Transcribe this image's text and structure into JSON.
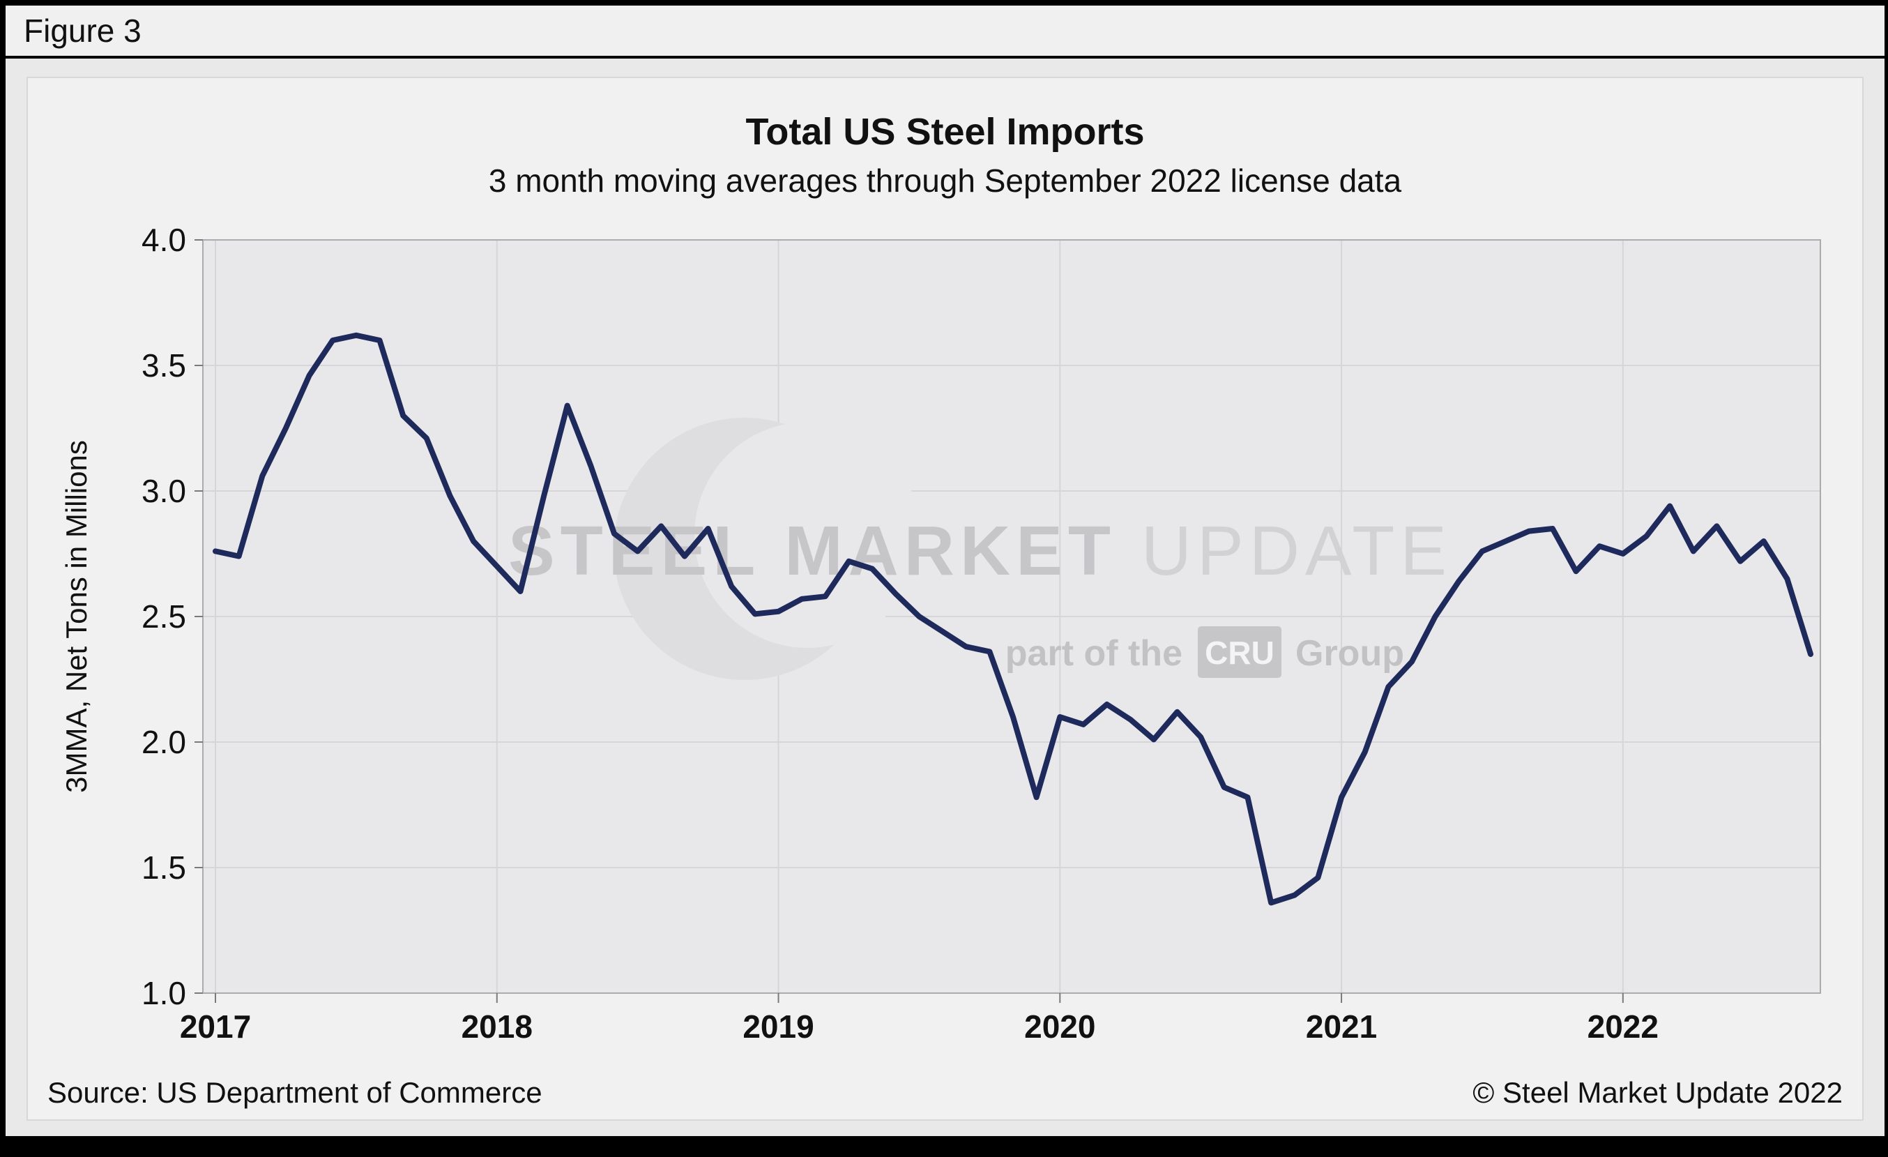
{
  "figure_label": "Figure 3",
  "chart": {
    "title": "Total US Steel Imports",
    "subtitle": "3 month moving averages through September 2022 license data",
    "ylabel": "3MMA, Net Tons in Millions",
    "watermark": {
      "line1_bold": "STEEL MARKET ",
      "line1_light": "UPDATE",
      "line2_pre": "part of the",
      "line2_box": "CRU",
      "line2_post": "Group"
    },
    "colors": {
      "line": "#1f2a5c",
      "plot_bg": "#e8e8ea",
      "gridline": "#d6d6d8",
      "plot_border": "#ababad",
      "watermark_text": "#c6c6c9",
      "watermark_light": "#d2d2d4"
    }
  },
  "footer": {
    "source": "Source: US Department of Commerce",
    "copyright": "© Steel Market Update 2022"
  },
  "chart_data": {
    "type": "line",
    "title": "Total US Steel Imports",
    "subtitle": "3 month moving averages through September 2022 license data",
    "xlabel": "",
    "ylabel": "3MMA, Net Tons in Millions",
    "ylim": [
      1.0,
      4.0
    ],
    "yticks": [
      1.0,
      1.5,
      2.0,
      2.5,
      3.0,
      3.5,
      4.0
    ],
    "ytick_labels": [
      "1.0",
      "1.5",
      "2.0",
      "2.5",
      "3.0",
      "3.5",
      "4.0"
    ],
    "x_tick_years": [
      "2017",
      "2018",
      "2019",
      "2020",
      "2021",
      "2022"
    ],
    "grid": true,
    "legend": "none",
    "x": [
      "2017-01",
      "2017-02",
      "2017-03",
      "2017-04",
      "2017-05",
      "2017-06",
      "2017-07",
      "2017-08",
      "2017-09",
      "2017-10",
      "2017-11",
      "2017-12",
      "2018-01",
      "2018-02",
      "2018-03",
      "2018-04",
      "2018-05",
      "2018-06",
      "2018-07",
      "2018-08",
      "2018-09",
      "2018-10",
      "2018-11",
      "2018-12",
      "2019-01",
      "2019-02",
      "2019-03",
      "2019-04",
      "2019-05",
      "2019-06",
      "2019-07",
      "2019-08",
      "2019-09",
      "2019-10",
      "2019-11",
      "2019-12",
      "2020-01",
      "2020-02",
      "2020-03",
      "2020-04",
      "2020-05",
      "2020-06",
      "2020-07",
      "2020-08",
      "2020-09",
      "2020-10",
      "2020-11",
      "2020-12",
      "2021-01",
      "2021-02",
      "2021-03",
      "2021-04",
      "2021-05",
      "2021-06",
      "2021-07",
      "2021-08",
      "2021-09",
      "2021-10",
      "2021-11",
      "2021-12",
      "2022-01",
      "2022-02",
      "2022-03",
      "2022-04",
      "2022-05",
      "2022-06",
      "2022-07",
      "2022-08",
      "2022-09"
    ],
    "series": [
      {
        "name": "Total US Steel Imports, 3MMA (Net Tons in Millions)",
        "values": [
          2.76,
          2.74,
          3.06,
          3.25,
          3.46,
          3.6,
          3.62,
          3.6,
          3.3,
          3.21,
          2.98,
          2.8,
          2.7,
          2.6,
          2.98,
          3.34,
          3.1,
          2.83,
          2.76,
          2.86,
          2.74,
          2.85,
          2.62,
          2.51,
          2.52,
          2.57,
          2.58,
          2.72,
          2.69,
          2.59,
          2.5,
          2.44,
          2.38,
          2.36,
          2.1,
          1.78,
          2.1,
          2.07,
          2.15,
          2.09,
          2.01,
          2.12,
          2.02,
          1.82,
          1.78,
          1.36,
          1.39,
          1.46,
          1.78,
          1.96,
          2.22,
          2.32,
          2.5,
          2.64,
          2.76,
          2.8,
          2.84,
          2.85,
          2.68,
          2.78,
          2.75,
          2.82,
          2.94,
          2.76,
          2.86,
          2.72,
          2.8,
          2.65,
          2.35
        ]
      }
    ]
  }
}
